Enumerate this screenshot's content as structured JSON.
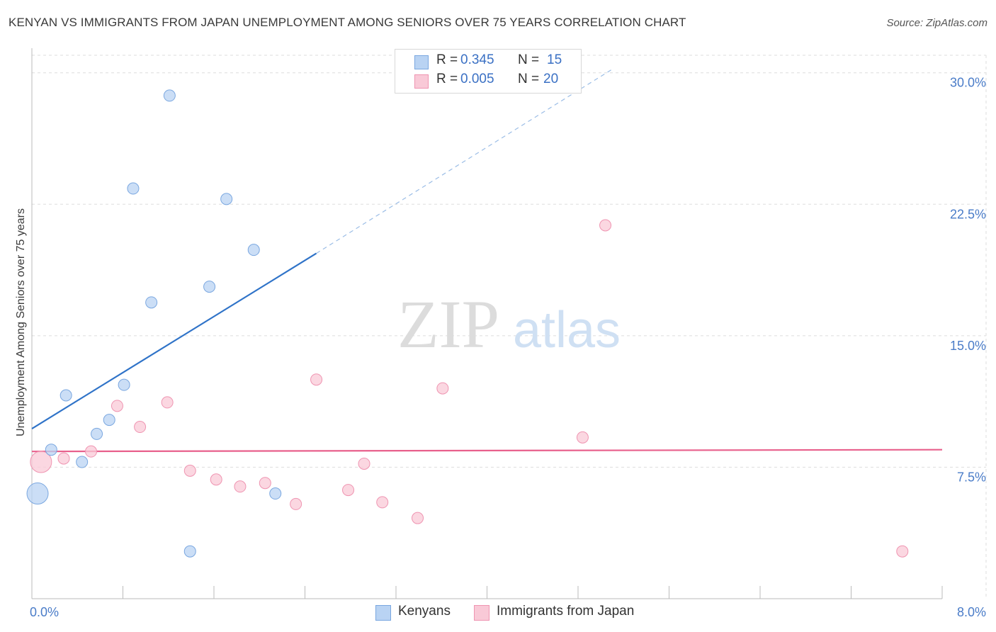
{
  "title": "KENYAN VS IMMIGRANTS FROM JAPAN UNEMPLOYMENT AMONG SENIORS OVER 75 YEARS CORRELATION CHART",
  "source": "Source: ZipAtlas.com",
  "watermark": {
    "zip": "ZIP",
    "atlas": "atlas"
  },
  "legend": {
    "r_label": "R =",
    "n_label": "N =",
    "series": [
      {
        "name": "Kenyans",
        "r": "0.345",
        "n": "15"
      },
      {
        "name": "Immigrants from Japan",
        "r": "0.005",
        "n": "20"
      }
    ]
  },
  "colors": {
    "kenyans_fill": "#b9d3f3",
    "kenyans_stroke": "#7aa7e0",
    "kenyans_line": "#2f73c8",
    "japan_fill": "#f9c9d7",
    "japan_stroke": "#ef94b1",
    "japan_line": "#e8608c",
    "grid": "#dddddd",
    "tick_text": "#4a7cc8"
  },
  "chart_data": {
    "type": "scatter",
    "title": "KENYAN VS IMMIGRANTS FROM JAPAN UNEMPLOYMENT AMONG SENIORS OVER 75 YEARS CORRELATION CHART",
    "xlabel": "",
    "ylabel": "Unemployment Among Seniors over 75 years",
    "xlim": [
      0,
      8
    ],
    "ylim": [
      0,
      31
    ],
    "x_tick_labels": [
      "0.0%",
      "8.0%"
    ],
    "y_ticks": [
      7.5,
      15.0,
      22.5,
      30.0
    ],
    "y_tick_labels": [
      "7.5%",
      "15.0%",
      "22.5%",
      "30.0%"
    ],
    "grid": true,
    "legend_position": "top-center",
    "series": [
      {
        "name": "Kenyans",
        "points": [
          {
            "x": 0.05,
            "y": 6.0,
            "size": "large"
          },
          {
            "x": 0.17,
            "y": 8.5
          },
          {
            "x": 0.3,
            "y": 11.6
          },
          {
            "x": 0.44,
            "y": 7.8
          },
          {
            "x": 0.57,
            "y": 9.4
          },
          {
            "x": 0.68,
            "y": 10.2
          },
          {
            "x": 0.81,
            "y": 12.2
          },
          {
            "x": 0.89,
            "y": 23.4
          },
          {
            "x": 1.05,
            "y": 16.9
          },
          {
            "x": 1.21,
            "y": 28.7
          },
          {
            "x": 1.39,
            "y": 2.7
          },
          {
            "x": 1.56,
            "y": 17.8
          },
          {
            "x": 1.71,
            "y": 22.8
          },
          {
            "x": 1.95,
            "y": 19.9
          },
          {
            "x": 2.14,
            "y": 6.0
          }
        ],
        "trend": {
          "x_start": 0.0,
          "y_start": 9.7,
          "x_solid_end": 2.5,
          "y_solid_end": 19.7,
          "x_dash_end": 5.1,
          "y_dash_end": 30.2
        }
      },
      {
        "name": "Immigrants from Japan",
        "points": [
          {
            "x": 0.08,
            "y": 7.8,
            "size": "large"
          },
          {
            "x": 0.28,
            "y": 8.0
          },
          {
            "x": 0.52,
            "y": 8.4
          },
          {
            "x": 0.75,
            "y": 11.0
          },
          {
            "x": 0.95,
            "y": 9.8
          },
          {
            "x": 1.19,
            "y": 11.2
          },
          {
            "x": 1.39,
            "y": 7.3
          },
          {
            "x": 1.62,
            "y": 6.8
          },
          {
            "x": 1.83,
            "y": 6.4
          },
          {
            "x": 2.05,
            "y": 6.6
          },
          {
            "x": 2.32,
            "y": 5.4
          },
          {
            "x": 2.5,
            "y": 12.5
          },
          {
            "x": 2.78,
            "y": 6.2
          },
          {
            "x": 2.92,
            "y": 7.7
          },
          {
            "x": 3.08,
            "y": 5.5
          },
          {
            "x": 3.39,
            "y": 4.6
          },
          {
            "x": 3.61,
            "y": 12.0
          },
          {
            "x": 4.84,
            "y": 9.2
          },
          {
            "x": 5.04,
            "y": 21.3
          },
          {
            "x": 7.65,
            "y": 2.7
          }
        ],
        "trend": {
          "x_start": 0.0,
          "y_start": 8.4,
          "x_end": 8.0,
          "y_end": 8.5
        }
      }
    ]
  }
}
